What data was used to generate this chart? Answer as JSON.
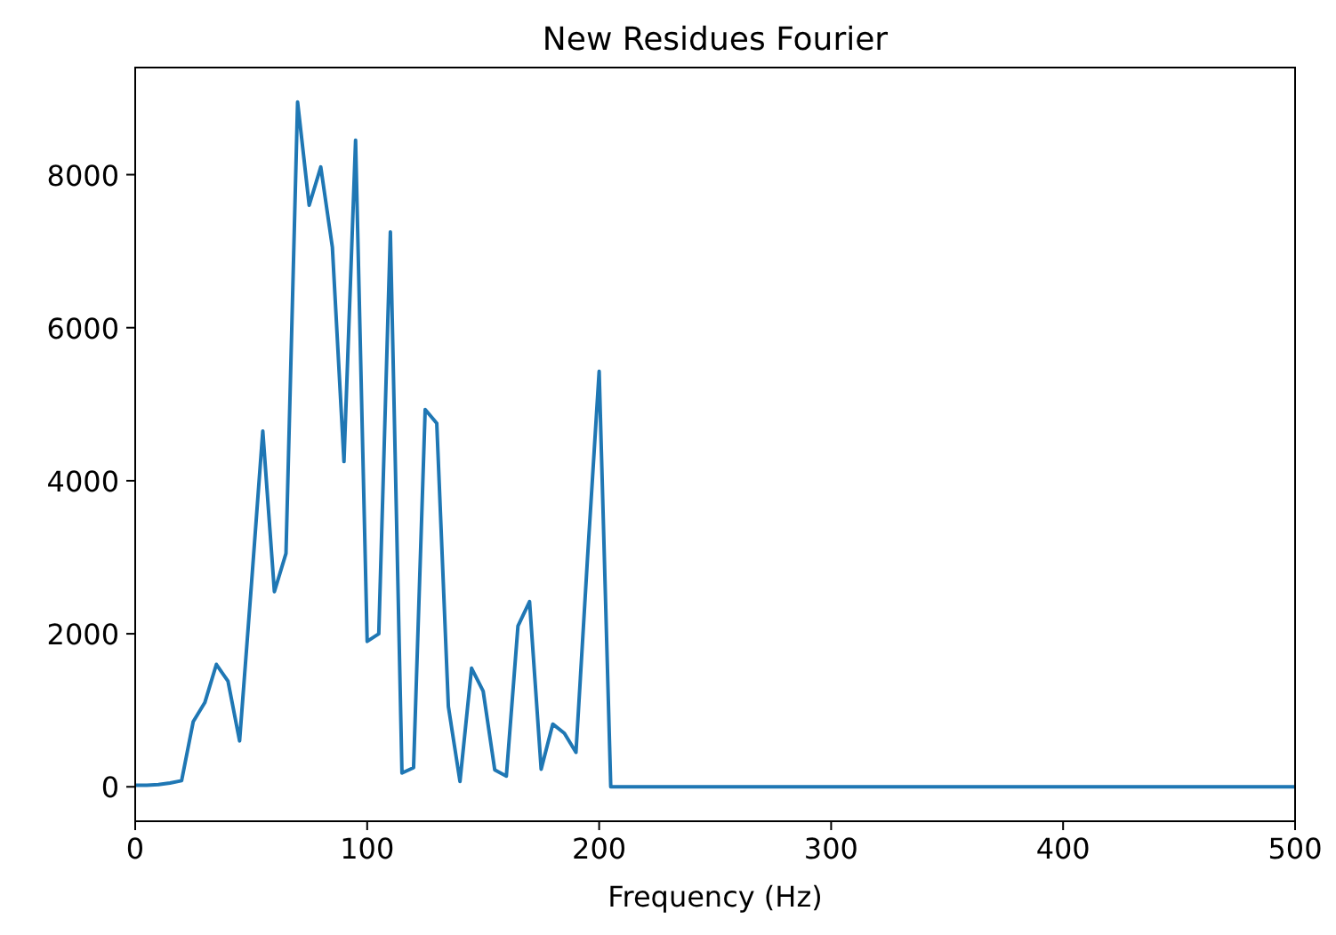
{
  "chart_data": {
    "type": "line",
    "title": "New Residues Fourier",
    "xlabel": "Frequency (Hz)",
    "xlim": [
      0,
      500
    ],
    "xticks": [
      0,
      100,
      200,
      300,
      400,
      500
    ],
    "ylim": [
      -450,
      9400
    ],
    "yticks": [
      0,
      2000,
      4000,
      6000,
      8000
    ],
    "grid": false,
    "x": [
      0,
      5,
      10,
      15,
      20,
      25,
      30,
      35,
      40,
      45,
      50,
      55,
      60,
      65,
      70,
      75,
      80,
      85,
      90,
      95,
      100,
      105,
      110,
      115,
      120,
      125,
      130,
      135,
      140,
      145,
      150,
      155,
      160,
      165,
      170,
      175,
      180,
      185,
      190,
      195,
      200,
      205,
      500
    ],
    "series": [
      {
        "color": "#1f77b4",
        "values": [
          20,
          20,
          30,
          50,
          80,
          850,
          1100,
          1600,
          1380,
          600,
          2600,
          4650,
          2550,
          3050,
          8950,
          7600,
          8100,
          7050,
          4250,
          8450,
          1900,
          2000,
          7250,
          180,
          250,
          4930,
          4750,
          1050,
          70,
          1550,
          1250,
          220,
          140,
          2100,
          2420,
          230,
          820,
          700,
          450,
          3000,
          5430,
          0,
          0
        ]
      }
    ]
  }
}
